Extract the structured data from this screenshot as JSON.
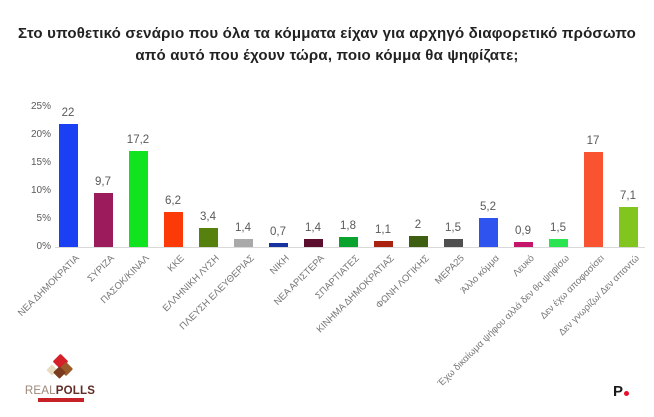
{
  "title": {
    "line1": "Στο υποθετικό σενάριο που όλα τα κόμματα είχαν για αρχηγό διαφορετικό πρόσωπο",
    "line2": "από αυτό που έχουν τώρα, ποιο κόμμα θα ψηφίζατε;"
  },
  "chart_data": {
    "type": "bar",
    "title": "Στο υποθετικό σενάριο που όλα τα κόμματα είχαν για αρχηγό διαφορετικό πρόσωπο από αυτό που έχουν τώρα, ποιο κόμμα θα ψηφίζατε;",
    "categories": [
      "ΝΕΑ ΔΗΜΟΚΡΑΤΙΑ",
      "ΣΥΡΙΖΑ",
      "ΠΑΣΟΚ/ΚΙΝΑΛ",
      "ΚΚΕ",
      "ΕΛΛΗΝΙΚΗ ΛΥΣΗ",
      "ΠΛΕΥΣΗ ΕΛΕΥΘΕΡΙΑΣ",
      "ΝΙΚΗ",
      "ΝΕΑ ΑΡΙΣΤΕΡΑ",
      "ΣΠΑΡΤΙΑΤΕΣ",
      "ΚΙΝΗΜΑ ΔΗΜΟΚΡΑΤΙΑΣ",
      "ΦΩΝΗ ΛΟΓΙΚΗΣ",
      "ΜΕΡΑ25",
      "Άλλο κόμμα",
      "Λευκό",
      "Έχω δικαίωμα ψήφου αλλά δεν θα ψηφίσω",
      "Δεν έχω αποφασίσει",
      "Δεν γνωρίζω/ Δεν απαντώ"
    ],
    "values": [
      22,
      9.7,
      17.2,
      6.2,
      3.4,
      1.4,
      0.7,
      1.4,
      1.8,
      1.1,
      2,
      1.5,
      5.2,
      0.9,
      1.5,
      17,
      7.1
    ],
    "value_labels": [
      "22",
      "9,7",
      "17,2",
      "6,2",
      "3,4",
      "1,4",
      "0,7",
      "1,4",
      "1,8",
      "1,1",
      "2",
      "1,5",
      "5,2",
      "0,9",
      "1,5",
      "17",
      "7,1"
    ],
    "bar_colors": [
      "#1b3ff2",
      "#9b1b5c",
      "#12e31f",
      "#fb3a07",
      "#56810f",
      "#a9a9a9",
      "#18339f",
      "#5c0e2e",
      "#0aa32e",
      "#a92310",
      "#3e5e12",
      "#4f4f4f",
      "#2e53ee",
      "#c4156b",
      "#2ae551",
      "#f95331",
      "#82c51e"
    ],
    "yticks": [
      "0%",
      "5%",
      "10%",
      "15%",
      "20%",
      "25%"
    ],
    "ylim": [
      0,
      25
    ],
    "xlabel": "",
    "ylabel": "",
    "grid": false,
    "legend": false
  },
  "footer": {
    "left_logo": {
      "text_real": "REAL",
      "text_polls": "POLLS"
    },
    "right_logo": {
      "text": "P"
    }
  }
}
